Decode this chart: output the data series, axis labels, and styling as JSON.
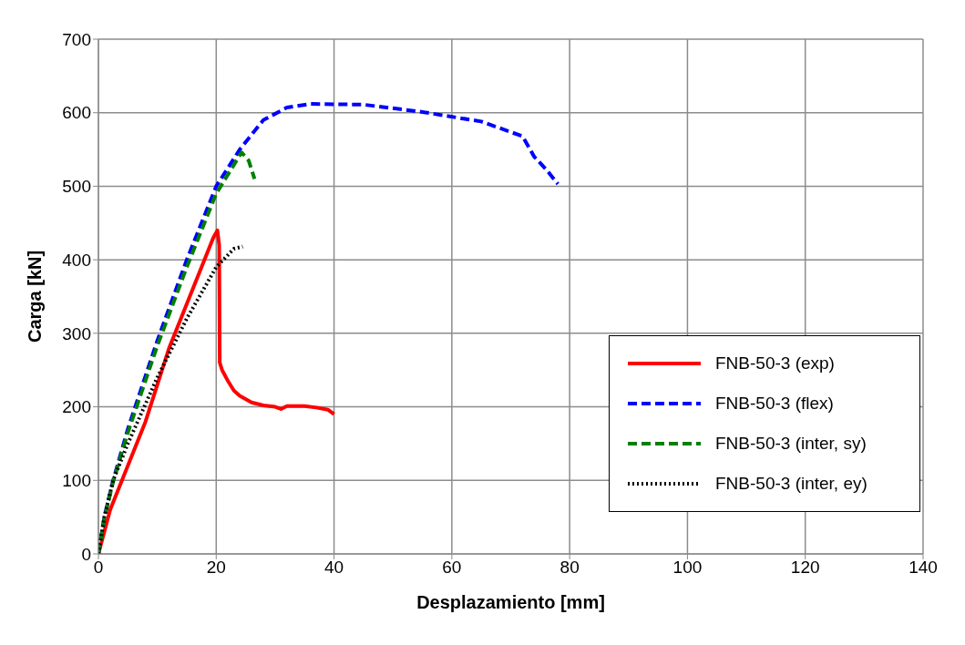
{
  "chart_data": {
    "type": "line",
    "xlabel": "Desplazamiento [mm]",
    "ylabel": "Carga [kN]",
    "xlim": [
      0,
      140
    ],
    "xticks": [
      0,
      20,
      40,
      60,
      80,
      100,
      120,
      140
    ],
    "ylim": [
      0,
      700
    ],
    "yticks": [
      0,
      100,
      200,
      300,
      400,
      500,
      600,
      700
    ],
    "grid": true,
    "legend": "bottom right",
    "marker": "none",
    "series": [
      {
        "name": "FNB-50-3 (exp)",
        "color": "#ff0000",
        "line_style": "solid",
        "x": [
          0,
          2,
          4,
          6,
          8,
          10,
          12,
          14,
          16,
          18,
          19.5,
          20.2,
          20.5,
          20.6,
          21,
          22,
          23,
          24,
          26,
          28,
          30,
          31,
          32,
          35,
          37,
          39,
          40
        ],
        "values": [
          0,
          60,
          100,
          140,
          180,
          230,
          280,
          320,
          360,
          400,
          430,
          440,
          420,
          260,
          250,
          235,
          222,
          215,
          206,
          202,
          200,
          197,
          201,
          201,
          199,
          196,
          190
        ]
      },
      {
        "name": "FNB-50-3 (flex)",
        "color": "#0000ff",
        "line_style": "dashed",
        "x": [
          0,
          1,
          2.5,
          5,
          10,
          15,
          20,
          24,
          28,
          32,
          36,
          45,
          55,
          65,
          72,
          74,
          76,
          78
        ],
        "values": [
          0,
          50,
          100,
          170,
          290,
          400,
          500,
          550,
          590,
          607,
          612,
          611,
          601,
          588,
          568,
          540,
          523,
          503
        ]
      },
      {
        "name": "FNB-50-3 (inter, sy)",
        "color": "#008000",
        "line_style": "dashed",
        "x": [
          0,
          1,
          2.5,
          5,
          10,
          15,
          20,
          24.3,
          25.5,
          26.5
        ],
        "values": [
          0,
          48,
          98,
          165,
          283,
          390,
          490,
          546,
          535,
          510
        ]
      },
      {
        "name": "FNB-50-3 (inter, ey)",
        "color": "#000000",
        "line_style": "dotted",
        "x": [
          0,
          1,
          2.5,
          5,
          10,
          15,
          20,
          23,
          24.5
        ],
        "values": [
          0,
          50,
          100,
          150,
          240,
          320,
          390,
          415,
          418
        ]
      }
    ]
  }
}
